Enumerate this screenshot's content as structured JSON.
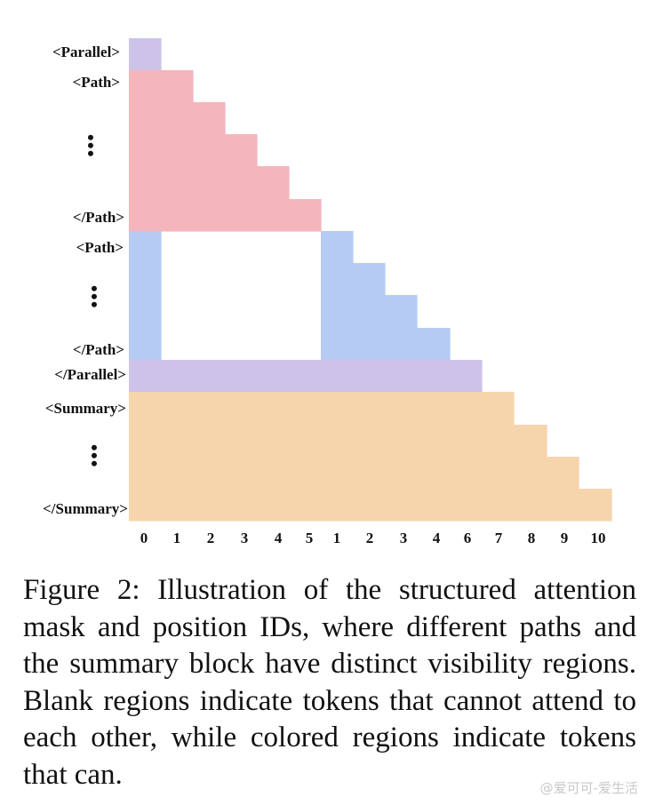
{
  "diagram": {
    "row_labels": [
      "<Parallel>",
      "<Path>",
      "</Path>",
      "<Path>",
      "</Path>",
      "</Parallel>",
      "<Summary>",
      "</Summary>"
    ],
    "column_labels": [
      "0",
      "1",
      "2",
      "3",
      "4",
      "5",
      "1",
      "2",
      "3",
      "4",
      "6",
      "7",
      "8",
      "9",
      "10"
    ],
    "colors": {
      "parallel": "#cdc3e8",
      "path1": "#f4b5bb",
      "path2": "#b5cbf3",
      "summary": "#f6d5ad"
    }
  },
  "caption": "Figure 2: Illustration of the structured attention mask and position IDs, where different paths and the summary block have distinct visibility regions. Blank regions indicate tokens that cannot attend to each other, while colored regions indicate tokens that can.",
  "watermark": "@爱可可-爱生活"
}
